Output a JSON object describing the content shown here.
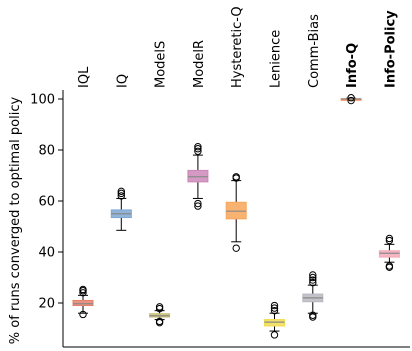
{
  "chart_data": {
    "type": "box",
    "ylabel": "% of runs converged to optimal policy",
    "xlabel": "",
    "ylim": [
      5,
      105
    ],
    "yticks": [
      20,
      40,
      60,
      80,
      100
    ],
    "categories": [
      "IQL",
      "IQ",
      "ModelS",
      "ModelR",
      "Hysteretic-Q",
      "Lenience",
      "Comm-Bias",
      "Info-Q",
      "Info-Policy"
    ],
    "bold_categories": [
      "Info-Q",
      "Info-Policy"
    ],
    "colors": [
      "#e8806a",
      "#7ea7d2",
      "#c8c070",
      "#cc88b8",
      "#f7a65a",
      "#f0dc50",
      "#b8b8c0",
      "#f58a50",
      "#f4a8b8"
    ],
    "boxes": [
      {
        "min": 16,
        "q1": 19,
        "median": 19.7,
        "q3": 21,
        "max": 23,
        "outliers": [
          15.5,
          24,
          24.8,
          25.3
        ]
      },
      {
        "min": 48.5,
        "q1": 53.5,
        "median": 55,
        "q3": 56.5,
        "max": 61,
        "outliers": [
          62,
          63,
          63.8
        ]
      },
      {
        "min": 13.5,
        "q1": 14.5,
        "median": 15,
        "q3": 15.8,
        "max": 17,
        "outliers": [
          12.3,
          12.8,
          17.8,
          18.5
        ]
      },
      {
        "min": 61,
        "q1": 67.5,
        "median": 69.5,
        "q3": 72,
        "max": 78,
        "outliers": [
          58,
          59,
          79.5,
          80.5,
          81.3
        ]
      },
      {
        "min": 44,
        "q1": 53,
        "median": 56,
        "q3": 59.5,
        "max": 68,
        "outliers": [
          41.5,
          69,
          69.5
        ]
      },
      {
        "min": 9,
        "q1": 11,
        "median": 12.5,
        "q3": 13.5,
        "max": 16,
        "outliers": [
          7.5,
          17,
          18,
          19
        ]
      },
      {
        "min": 16,
        "q1": 20.5,
        "median": 22,
        "q3": 23.5,
        "max": 27,
        "outliers": [
          14.5,
          15.2,
          28,
          29,
          30,
          31
        ]
      },
      {
        "min": 99.6,
        "q1": 99.8,
        "median": 100,
        "q3": 100.1,
        "max": 100.3,
        "outliers": [
          99.4,
          100.5
        ]
      },
      {
        "min": 36,
        "q1": 38,
        "median": 39.5,
        "q3": 40.5,
        "max": 43,
        "outliers": [
          34,
          34.5,
          44.5,
          45.3
        ]
      }
    ]
  }
}
